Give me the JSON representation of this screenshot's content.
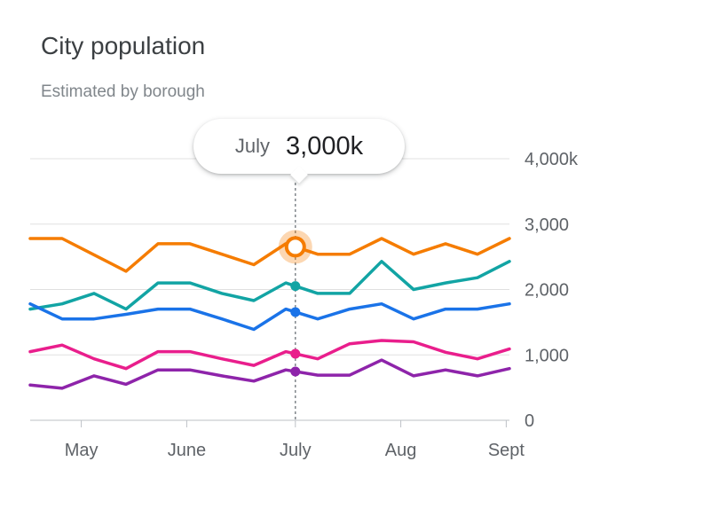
{
  "header": {
    "title": "City population",
    "subtitle": "Estimated by borough"
  },
  "tooltip": {
    "label": "July",
    "value": "3,000k"
  },
  "chart_data": {
    "type": "line",
    "title": "City population",
    "subtitle": "Estimated by borough",
    "y_ticks": [
      "0",
      "1,000",
      "2,000",
      "3,000",
      "4,000k"
    ],
    "y_tick_values": [
      0,
      1000,
      2000,
      3000,
      4000
    ],
    "ylim": [
      0,
      4000
    ],
    "x_ticks": [
      "May",
      "June",
      "July",
      "Aug",
      "Sept"
    ],
    "x_tick_positions": [
      1.6,
      4.9,
      8.3,
      11.6,
      14.9
    ],
    "xlim": [
      0,
      15
    ],
    "highlight_index": 8.3,
    "grid": true,
    "series": [
      {
        "color": "#f57c00",
        "x": [
          0,
          1,
          2,
          3,
          4,
          5,
          6,
          7,
          8,
          9,
          10,
          11,
          12,
          13,
          14,
          15
        ],
        "values": [
          2780,
          2780,
          2530,
          2280,
          2700,
          2700,
          2540,
          2380,
          2700,
          2540,
          2540,
          2780,
          2540,
          2700,
          2540,
          2780
        ]
      },
      {
        "color": "#12a4a4",
        "x": [
          0,
          1,
          2,
          3,
          4,
          5,
          6,
          7,
          8,
          9,
          10,
          11,
          12,
          13,
          14,
          15
        ],
        "values": [
          1700,
          1780,
          1940,
          1700,
          2100,
          2100,
          1940,
          1830,
          2100,
          1940,
          1940,
          2430,
          2000,
          2100,
          2180,
          2430
        ]
      },
      {
        "color": "#1a73e8",
        "x": [
          0,
          1,
          2,
          3,
          4,
          5,
          6,
          7,
          8,
          9,
          10,
          11,
          12,
          13,
          14,
          15
        ],
        "values": [
          1780,
          1550,
          1550,
          1620,
          1700,
          1700,
          1550,
          1390,
          1700,
          1550,
          1700,
          1780,
          1550,
          1700,
          1700,
          1780
        ]
      },
      {
        "color": "#e91e8c",
        "x": [
          0,
          1,
          2,
          3,
          4,
          5,
          6,
          7,
          8,
          9,
          10,
          11,
          12,
          13,
          14,
          15
        ],
        "values": [
          1050,
          1150,
          940,
          790,
          1050,
          1050,
          940,
          840,
          1050,
          940,
          1170,
          1220,
          1200,
          1040,
          940,
          1090
        ]
      },
      {
        "color": "#8e24aa",
        "x": [
          0,
          1,
          2,
          3,
          4,
          5,
          6,
          7,
          8,
          9,
          10,
          11,
          12,
          13,
          14,
          15
        ],
        "values": [
          540,
          490,
          680,
          550,
          770,
          770,
          680,
          600,
          770,
          690,
          690,
          920,
          680,
          770,
          680,
          790
        ]
      }
    ]
  }
}
